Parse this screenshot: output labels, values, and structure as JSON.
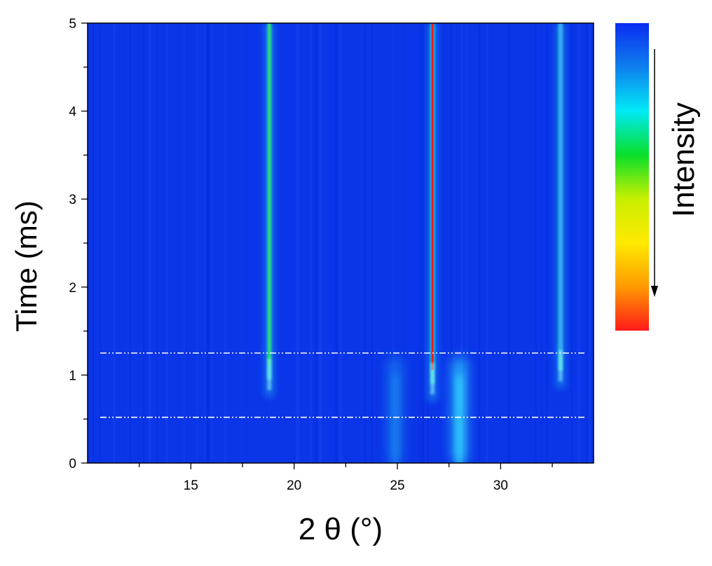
{
  "chart_data": {
    "type": "heatmap",
    "xlabel": "2 θ (°)",
    "ylabel": "Time (ms)",
    "xlim": [
      10,
      34.5
    ],
    "ylim": [
      0,
      5
    ],
    "xticks": [
      15,
      20,
      25,
      30
    ],
    "yticks": [
      0,
      1,
      2,
      3,
      4,
      5
    ],
    "colorbar": {
      "label": "Intensity",
      "colors": [
        "#0a2cf0",
        "#0e7fee",
        "#00eaf5",
        "#08e02a",
        "#c8ef00",
        "#ffea00",
        "#ff9a00",
        "#ff1a1a"
      ],
      "arrow_direction": "down"
    },
    "background_color": "#0a35e8",
    "persistent_peaks": [
      {
        "two_theta": 18.8,
        "onset_time": 0.75,
        "color": "#21e05a"
      },
      {
        "two_theta": 26.7,
        "onset_time": 0.7,
        "color": "#f01c10"
      },
      {
        "two_theta": 32.9,
        "onset_time": 0.85,
        "color": "#3aa2ff"
      }
    ],
    "transient_peaks": [
      {
        "two_theta": 24.9,
        "time_range": [
          0,
          1.2
        ],
        "color": "#1f8ff0"
      },
      {
        "two_theta": 28.0,
        "time_range": [
          0,
          1.2
        ],
        "color": "#38f0ff"
      }
    ],
    "reference_lines": [
      {
        "time": 1.25,
        "style": "dash-dot-dot",
        "color": "#ffffff"
      },
      {
        "time": 0.52,
        "style": "dash-dot-dot",
        "color": "#ffffff"
      }
    ]
  }
}
